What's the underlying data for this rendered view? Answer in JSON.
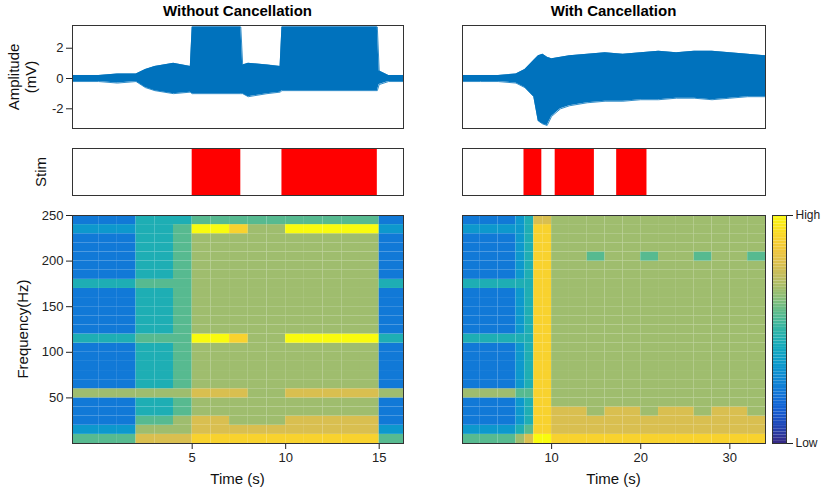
{
  "chart_data": [
    {
      "type": "area",
      "title": "Without Cancellation",
      "y_label": "Amplitude (mV)",
      "color": "#0072bd",
      "xlim": [
        -1.4,
        16.3
      ],
      "ylim": [
        -3.3,
        3.5
      ],
      "yticks": [
        -2,
        0,
        2
      ],
      "tick_labels": "y",
      "x": [
        -1.4,
        0,
        1,
        2,
        2.5,
        3,
        4,
        4.9,
        5,
        7.6,
        7.7,
        8,
        9,
        9.7,
        9.8,
        14.9,
        15,
        15.5,
        16.3
      ],
      "min": [
        -0.2,
        -0.2,
        -0.3,
        -0.2,
        -0.6,
        -0.8,
        -1.0,
        -0.9,
        -1.0,
        -1.0,
        -1.0,
        -1.2,
        -1.0,
        -0.9,
        -0.8,
        -0.8,
        -0.4,
        -0.2,
        -0.2
      ],
      "max": [
        0.2,
        0.2,
        0.3,
        0.3,
        0.6,
        0.8,
        1.0,
        0.8,
        3.4,
        3.4,
        0.9,
        1.0,
        0.9,
        0.8,
        3.4,
        3.4,
        0.5,
        0.2,
        0.2
      ]
    },
    {
      "type": "interval",
      "y_label": "Stim",
      "color": "#ff0000",
      "xlim": [
        -1.4,
        16.3
      ],
      "tick_labels": false,
      "intervals": [
        [
          5,
          7.6
        ],
        [
          9.8,
          14.9
        ]
      ]
    },
    {
      "type": "heatmap",
      "x_label": "Time (s)",
      "y_label": "Frequency(Hz)",
      "xlim": [
        -1.4,
        16.3
      ],
      "ylim": [
        0,
        250
      ],
      "xticks": [
        5,
        10,
        15
      ],
      "yticks": [
        50,
        100,
        150,
        200,
        250
      ],
      "x_edges": [
        -1.4,
        0,
        1,
        2,
        3,
        4,
        5,
        6,
        7,
        8,
        9,
        10,
        11,
        12,
        13,
        14,
        15,
        16.3
      ],
      "y_edges": [
        0,
        10,
        20,
        30,
        40,
        50,
        60,
        70,
        80,
        90,
        100,
        110,
        120,
        130,
        140,
        150,
        160,
        170,
        180,
        190,
        200,
        210,
        220,
        230,
        240,
        250
      ],
      "cells": [
        [
          5,
          3,
          2,
          2,
          2,
          6,
          2,
          2,
          2,
          2,
          2,
          4,
          2,
          2,
          2,
          2,
          2,
          4,
          2,
          2,
          2,
          2,
          2,
          3,
          2
        ],
        [
          5,
          3,
          2,
          2,
          2,
          6,
          2,
          2,
          2,
          2,
          2,
          4,
          2,
          2,
          2,
          2,
          2,
          4,
          2,
          2,
          2,
          2,
          2,
          3,
          2
        ],
        [
          5,
          3,
          2,
          2,
          2,
          6,
          2,
          2,
          2,
          2,
          2,
          4,
          2,
          2,
          2,
          2,
          2,
          4,
          2,
          2,
          2,
          2,
          2,
          3,
          2
        ],
        [
          7,
          6,
          5,
          4,
          4,
          6,
          4,
          4,
          4,
          4,
          4,
          5,
          4,
          4,
          4,
          4,
          4,
          5,
          4,
          4,
          4,
          4,
          4,
          4,
          4
        ],
        [
          7,
          6,
          5,
          4,
          4,
          6,
          4,
          4,
          4,
          4,
          4,
          5,
          4,
          4,
          4,
          4,
          4,
          5,
          4,
          4,
          4,
          4,
          4,
          4,
          4
        ],
        [
          7,
          6,
          6,
          5,
          5,
          6,
          5,
          5,
          5,
          5,
          5,
          5,
          5,
          5,
          5,
          5,
          5,
          5,
          5,
          5,
          5,
          5,
          5,
          5,
          4
        ],
        [
          8,
          7,
          7,
          6,
          6,
          7,
          6,
          6,
          6,
          6,
          6,
          9,
          6,
          6,
          6,
          6,
          6,
          6,
          6,
          6,
          6,
          6,
          6,
          9,
          5
        ],
        [
          8,
          7,
          7,
          6,
          6,
          7,
          6,
          6,
          6,
          6,
          6,
          9,
          6,
          6,
          6,
          6,
          6,
          6,
          6,
          6,
          6,
          6,
          6,
          9,
          5
        ],
        [
          8,
          7,
          6,
          6,
          6,
          7,
          6,
          6,
          6,
          6,
          6,
          8,
          6,
          6,
          6,
          6,
          6,
          6,
          6,
          6,
          6,
          6,
          6,
          8,
          5
        ],
        [
          8,
          7,
          6,
          6,
          6,
          6,
          6,
          6,
          6,
          6,
          6,
          6,
          6,
          6,
          6,
          6,
          6,
          6,
          6,
          6,
          6,
          6,
          6,
          6,
          5
        ],
        [
          8,
          7,
          6,
          6,
          6,
          6,
          6,
          6,
          6,
          6,
          6,
          6,
          6,
          6,
          6,
          6,
          6,
          6,
          6,
          6,
          6,
          6,
          6,
          6,
          5
        ],
        [
          8,
          7,
          7,
          6,
          6,
          7,
          6,
          6,
          6,
          6,
          6,
          9,
          6,
          6,
          6,
          6,
          6,
          6,
          6,
          6,
          6,
          6,
          6,
          9,
          5
        ],
        [
          8,
          7,
          7,
          6,
          6,
          7,
          6,
          6,
          6,
          6,
          6,
          9,
          6,
          6,
          6,
          6,
          6,
          6,
          6,
          6,
          6,
          6,
          6,
          9,
          5
        ],
        [
          8,
          7,
          7,
          6,
          6,
          7,
          6,
          6,
          6,
          6,
          6,
          9,
          6,
          6,
          6,
          6,
          6,
          6,
          6,
          6,
          6,
          6,
          6,
          9,
          5
        ],
        [
          8,
          7,
          7,
          6,
          6,
          7,
          6,
          6,
          6,
          6,
          6,
          9,
          6,
          6,
          6,
          6,
          6,
          6,
          6,
          6,
          6,
          6,
          6,
          9,
          5
        ],
        [
          8,
          7,
          7,
          6,
          6,
          7,
          6,
          6,
          6,
          6,
          6,
          9,
          6,
          6,
          6,
          6,
          6,
          6,
          6,
          6,
          6,
          6,
          6,
          9,
          5
        ],
        [
          5,
          3,
          2,
          2,
          2,
          6,
          2,
          2,
          2,
          2,
          2,
          4,
          2,
          2,
          2,
          2,
          2,
          4,
          2,
          2,
          2,
          2,
          2,
          3,
          2
        ]
      ]
    },
    {
      "type": "area",
      "title": "With Cancellation",
      "color": "#0072bd",
      "xlim": [
        0,
        34
      ],
      "ylim": [
        -3.3,
        3.5
      ],
      "tick_labels": false,
      "x": [
        0,
        2,
        4,
        6,
        7,
        8,
        8.5,
        9,
        9.5,
        10,
        11,
        12,
        14,
        16,
        18,
        20,
        22,
        24,
        26,
        28,
        30,
        32,
        34
      ],
      "min": [
        -0.2,
        -0.2,
        -0.2,
        -0.3,
        -0.6,
        -1.2,
        -2.8,
        -3.0,
        -3.1,
        -2.5,
        -2.0,
        -1.8,
        -1.6,
        -1.5,
        -1.5,
        -1.4,
        -1.4,
        -1.3,
        -1.3,
        -1.4,
        -1.3,
        -1.2,
        -1.2
      ],
      "max": [
        0.2,
        0.2,
        0.2,
        0.3,
        0.6,
        1.2,
        1.5,
        1.6,
        1.4,
        1.3,
        1.4,
        1.5,
        1.6,
        1.7,
        1.6,
        1.7,
        1.8,
        1.7,
        1.8,
        1.8,
        1.7,
        1.6,
        1.5
      ]
    },
    {
      "type": "interval",
      "color": "#ff0000",
      "xlim": [
        0,
        34
      ],
      "tick_labels": false,
      "intervals": [
        [
          6.9,
          8.9
        ],
        [
          10.4,
          14.8
        ],
        [
          17.3,
          20.7
        ]
      ]
    },
    {
      "type": "heatmap",
      "x_label": "Time (s)",
      "xlim": [
        0,
        34
      ],
      "ylim": [
        0,
        250
      ],
      "xticks": [
        10,
        20,
        30
      ],
      "tick_labels": "x",
      "x_edges": [
        0,
        2,
        4,
        6,
        7,
        8,
        9,
        10,
        12,
        14,
        16,
        18,
        20,
        22,
        24,
        26,
        28,
        30,
        32,
        34
      ],
      "y_edges": [
        0,
        10,
        20,
        30,
        40,
        50,
        60,
        70,
        80,
        90,
        100,
        110,
        120,
        130,
        140,
        150,
        160,
        170,
        180,
        190,
        200,
        210,
        220,
        230,
        240,
        250
      ],
      "cells": [
        [
          5,
          3,
          2,
          2,
          2,
          6,
          2,
          2,
          2,
          2,
          2,
          4,
          2,
          2,
          2,
          2,
          2,
          4,
          2,
          2,
          2,
          2,
          2,
          3,
          2
        ],
        [
          5,
          3,
          2,
          2,
          2,
          6,
          2,
          2,
          2,
          2,
          2,
          4,
          2,
          2,
          2,
          2,
          2,
          4,
          2,
          2,
          2,
          2,
          2,
          3,
          2
        ],
        [
          5,
          3,
          2,
          2,
          2,
          6,
          2,
          2,
          2,
          2,
          2,
          4,
          2,
          2,
          2,
          2,
          2,
          4,
          2,
          2,
          2,
          2,
          2,
          3,
          2
        ],
        [
          6,
          4,
          3,
          3,
          3,
          5,
          3,
          3,
          3,
          3,
          3,
          4,
          3,
          3,
          3,
          3,
          3,
          4,
          3,
          3,
          3,
          3,
          3,
          3,
          3
        ],
        [
          7,
          5,
          4,
          4,
          4,
          5,
          4,
          4,
          4,
          4,
          4,
          4,
          4,
          4,
          4,
          4,
          4,
          4,
          4,
          4,
          4,
          4,
          4,
          4,
          4
        ],
        [
          9,
          8,
          8,
          8,
          8,
          8,
          8,
          8,
          8,
          8,
          8,
          8,
          8,
          8,
          8,
          8,
          8,
          8,
          8,
          8,
          8,
          8,
          8,
          8,
          7
        ],
        [
          9,
          8,
          8,
          8,
          8,
          8,
          8,
          8,
          8,
          8,
          8,
          8,
          8,
          8,
          8,
          8,
          8,
          8,
          8,
          8,
          8,
          8,
          8,
          8,
          7
        ],
        [
          8,
          7,
          7,
          7,
          6,
          6,
          6,
          6,
          6,
          6,
          6,
          6,
          6,
          6,
          6,
          6,
          6,
          6,
          6,
          6,
          6,
          6,
          6,
          6,
          6
        ],
        [
          8,
          7,
          7,
          7,
          6,
          6,
          6,
          6,
          6,
          6,
          6,
          6,
          6,
          6,
          6,
          6,
          6,
          6,
          6,
          6,
          6,
          6,
          6,
          6,
          6
        ],
        [
          8,
          7,
          7,
          6,
          6,
          6,
          6,
          6,
          6,
          6,
          6,
          6,
          6,
          6,
          6,
          6,
          6,
          6,
          6,
          6,
          5,
          6,
          6,
          6,
          6
        ],
        [
          8,
          7,
          7,
          7,
          6,
          6,
          6,
          6,
          6,
          6,
          6,
          6,
          6,
          6,
          6,
          6,
          6,
          6,
          6,
          6,
          6,
          6,
          6,
          6,
          6
        ],
        [
          8,
          7,
          7,
          7,
          6,
          6,
          6,
          6,
          6,
          6,
          6,
          6,
          6,
          6,
          6,
          6,
          6,
          6,
          6,
          6,
          6,
          6,
          6,
          6,
          6
        ],
        [
          8,
          7,
          7,
          6,
          6,
          6,
          6,
          6,
          6,
          6,
          6,
          6,
          6,
          6,
          6,
          6,
          6,
          6,
          6,
          6,
          5,
          6,
          6,
          6,
          6
        ],
        [
          8,
          7,
          7,
          7,
          6,
          6,
          6,
          6,
          6,
          6,
          6,
          6,
          6,
          6,
          6,
          6,
          6,
          6,
          6,
          6,
          6,
          6,
          6,
          6,
          6
        ],
        [
          8,
          7,
          7,
          7,
          6,
          6,
          6,
          6,
          6,
          6,
          6,
          6,
          6,
          6,
          6,
          6,
          6,
          6,
          6,
          6,
          6,
          6,
          6,
          6,
          6
        ],
        [
          8,
          7,
          7,
          6,
          6,
          6,
          6,
          6,
          6,
          6,
          6,
          6,
          6,
          6,
          6,
          6,
          6,
          6,
          6,
          6,
          5,
          6,
          6,
          6,
          6
        ],
        [
          8,
          7,
          7,
          7,
          6,
          6,
          6,
          6,
          6,
          6,
          6,
          6,
          6,
          6,
          6,
          6,
          6,
          6,
          6,
          6,
          6,
          6,
          6,
          6,
          6
        ],
        [
          8,
          7,
          7,
          7,
          6,
          6,
          6,
          6,
          6,
          6,
          6,
          6,
          6,
          6,
          6,
          6,
          6,
          6,
          6,
          6,
          6,
          6,
          6,
          6,
          6
        ],
        [
          8,
          7,
          7,
          6,
          6,
          6,
          6,
          6,
          6,
          6,
          6,
          6,
          6,
          6,
          6,
          6,
          6,
          6,
          6,
          6,
          5,
          6,
          6,
          6,
          6
        ]
      ],
      "colorbar": {
        "range": [
          0,
          9
        ],
        "ticks": [
          {
            "value": 9,
            "label": "High"
          },
          {
            "value": 0,
            "label": "Low"
          }
        ]
      }
    }
  ]
}
